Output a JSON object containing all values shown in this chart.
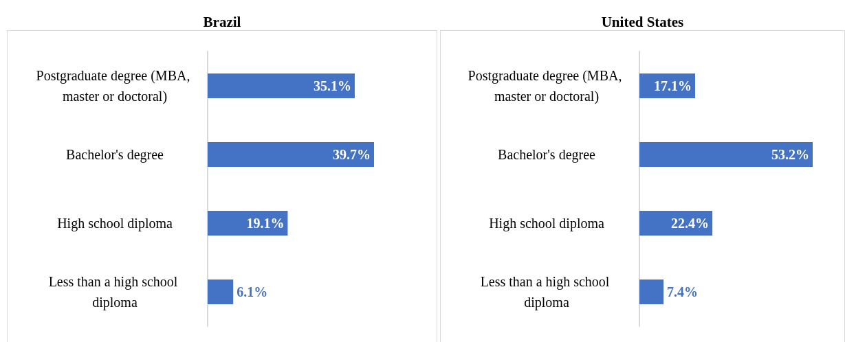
{
  "chart_data": [
    {
      "type": "bar",
      "orientation": "horizontal",
      "title": "Brazil",
      "categories": [
        "Postgraduate degree (MBA, master or doctoral)",
        "Bachelor's degree",
        "High school diploma",
        "Less than a high school diploma"
      ],
      "values": [
        35.1,
        39.7,
        19.1,
        6.1
      ],
      "value_labels": [
        "35.1%",
        "39.7%",
        "19.1%",
        "6.1%"
      ],
      "color": "#4472c4"
    },
    {
      "type": "bar",
      "orientation": "horizontal",
      "title": "United States",
      "categories": [
        "Postgraduate degree (MBA, master or doctoral)",
        "Bachelor's degree",
        "High school diploma",
        "Less than a high school diploma"
      ],
      "values": [
        17.1,
        53.2,
        22.4,
        7.4
      ],
      "value_labels": [
        "17.1%",
        "53.2%",
        "22.4%",
        "7.4%"
      ],
      "color": "#4472c4"
    }
  ]
}
